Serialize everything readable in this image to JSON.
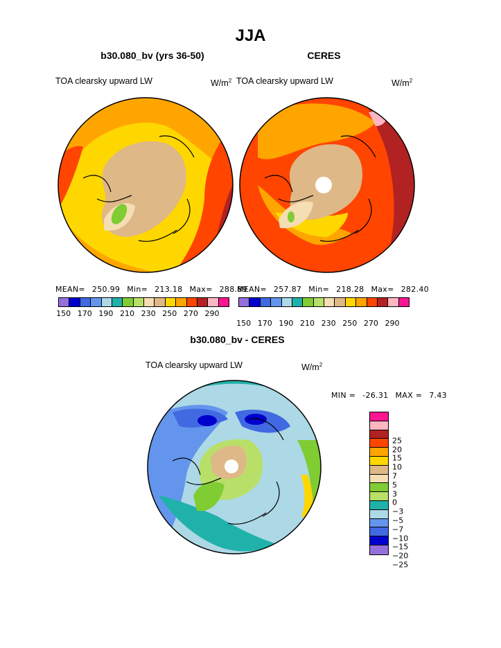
{
  "chart_data": {
    "type": "polar-contour-map",
    "season": "JJA",
    "panels": [
      {
        "title": "b30.080_bv (yrs 36-50)",
        "variable": "TOA clearsky upward LW",
        "units_base": "W/m",
        "units_exp": "2",
        "stats": {
          "mean_label": "MEAN=",
          "mean": "250.99",
          "min_label": "Min=",
          "min": "213.18",
          "max_label": "Max=",
          "max": "288.89"
        },
        "colorbar_levels": [
          "150",
          "170",
          "190",
          "210",
          "230",
          "250",
          "270",
          "290"
        ],
        "colorbar_colors": [
          "#9370db",
          "#0000cd",
          "#4169e1",
          "#6495ed",
          "#add8e6",
          "#20b2aa",
          "#7fcc33",
          "#b8e068",
          "#f5deb3",
          "#deb887",
          "#ffd700",
          "#ffa500",
          "#ff4500",
          "#b22222",
          "#ffb6c1",
          "#ff1493"
        ]
      },
      {
        "title": "CERES",
        "variable": "TOA clearsky upward LW",
        "units_base": "W/m",
        "units_exp": "2",
        "stats": {
          "mean_label": "MEAN=",
          "mean": "257.87",
          "min_label": "Min=",
          "min": "218.28",
          "max_label": "Max=",
          "max": "282.40"
        },
        "colorbar_levels": [
          "150",
          "170",
          "190",
          "210",
          "230",
          "250",
          "270",
          "290"
        ],
        "colorbar_colors": [
          "#9370db",
          "#0000cd",
          "#4169e1",
          "#6495ed",
          "#add8e6",
          "#20b2aa",
          "#7fcc33",
          "#b8e068",
          "#f5deb3",
          "#deb887",
          "#ffd700",
          "#ffa500",
          "#ff4500",
          "#b22222",
          "#ffb6c1",
          "#ff1493"
        ]
      }
    ],
    "difference": {
      "title": "b30.080_bv - CERES",
      "variable": "TOA clearsky upward LW",
      "units_base": "W/m",
      "units_exp": "2",
      "min_label": "MIN =",
      "min": "-26.31",
      "max_label": "MAX =",
      "max": "7.43",
      "levels": [
        "25",
        "20",
        "15",
        "10",
        "7",
        "5",
        "3",
        "0",
        "−3",
        "−5",
        "−7",
        "−10",
        "−15",
        "−20",
        "−25"
      ],
      "colors": [
        "#ff1493",
        "#ffb6c1",
        "#b22222",
        "#ff4500",
        "#ffa500",
        "#ffd700",
        "#deb887",
        "#f5deb3",
        "#7fcc33",
        "#b8e068",
        "#20b2aa",
        "#add8e6",
        "#6495ed",
        "#4169e1",
        "#0000cd",
        "#9370db"
      ]
    }
  }
}
